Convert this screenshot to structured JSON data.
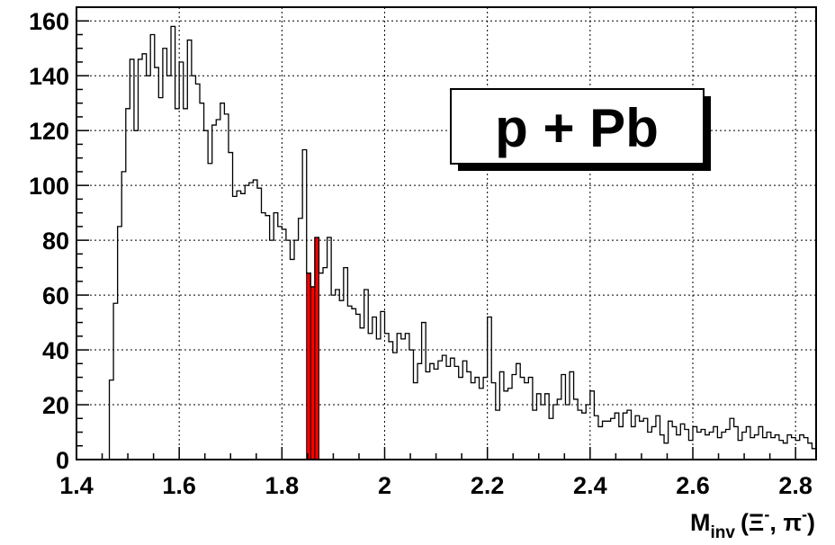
{
  "chart_data": {
    "type": "histogram",
    "title": "",
    "xlabel": "M",
    "xlabel_subscript": "inv",
    "xlabel_args": [
      "(Ξ",
      "-",
      ", π",
      "-",
      ")"
    ],
    "ylabel": "",
    "xlim": [
      1.4,
      2.84
    ],
    "ylim": [
      0,
      165
    ],
    "bin_width": 0.008,
    "grid": true,
    "x_ticks": [
      1.4,
      1.6,
      1.8,
      2,
      2.2,
      2.4,
      2.6,
      2.8
    ],
    "x_tick_labels": [
      "1.4",
      "1.6",
      "1.8",
      "2",
      "2.2",
      "2.4",
      "2.6",
      "2.8"
    ],
    "y_ticks": [
      0,
      20,
      40,
      60,
      80,
      100,
      120,
      140,
      160
    ],
    "y_tick_labels": [
      "0",
      "20",
      "40",
      "60",
      "80",
      "100",
      "120",
      "140",
      "160"
    ],
    "legend": {
      "text": "p + Pb",
      "placement": "top-right"
    },
    "line_color": "#000000",
    "highlight_color": "#ff0000",
    "highlight_bins": [
      {
        "x": 1.848,
        "y": 68
      },
      {
        "x": 1.856,
        "y": 63
      },
      {
        "x": 1.864,
        "y": 81
      }
    ],
    "bins": [
      {
        "x": 1.4,
        "y": 0
      },
      {
        "x": 1.408,
        "y": 0
      },
      {
        "x": 1.416,
        "y": 0
      },
      {
        "x": 1.424,
        "y": 0
      },
      {
        "x": 1.432,
        "y": 0
      },
      {
        "x": 1.44,
        "y": 0
      },
      {
        "x": 1.448,
        "y": 0
      },
      {
        "x": 1.456,
        "y": 0
      },
      {
        "x": 1.464,
        "y": 29
      },
      {
        "x": 1.472,
        "y": 57
      },
      {
        "x": 1.48,
        "y": 85
      },
      {
        "x": 1.488,
        "y": 105
      },
      {
        "x": 1.496,
        "y": 128
      },
      {
        "x": 1.504,
        "y": 146
      },
      {
        "x": 1.512,
        "y": 120
      },
      {
        "x": 1.52,
        "y": 146
      },
      {
        "x": 1.528,
        "y": 148
      },
      {
        "x": 1.536,
        "y": 140
      },
      {
        "x": 1.544,
        "y": 155
      },
      {
        "x": 1.552,
        "y": 143
      },
      {
        "x": 1.56,
        "y": 132
      },
      {
        "x": 1.568,
        "y": 150
      },
      {
        "x": 1.576,
        "y": 140
      },
      {
        "x": 1.584,
        "y": 158
      },
      {
        "x": 1.592,
        "y": 128
      },
      {
        "x": 1.6,
        "y": 145
      },
      {
        "x": 1.608,
        "y": 128
      },
      {
        "x": 1.616,
        "y": 153
      },
      {
        "x": 1.624,
        "y": 140
      },
      {
        "x": 1.632,
        "y": 137
      },
      {
        "x": 1.64,
        "y": 130
      },
      {
        "x": 1.648,
        "y": 120
      },
      {
        "x": 1.656,
        "y": 108
      },
      {
        "x": 1.664,
        "y": 122
      },
      {
        "x": 1.672,
        "y": 124
      },
      {
        "x": 1.68,
        "y": 130
      },
      {
        "x": 1.688,
        "y": 126
      },
      {
        "x": 1.696,
        "y": 112
      },
      {
        "x": 1.704,
        "y": 96
      },
      {
        "x": 1.712,
        "y": 98
      },
      {
        "x": 1.72,
        "y": 97
      },
      {
        "x": 1.728,
        "y": 100
      },
      {
        "x": 1.736,
        "y": 101
      },
      {
        "x": 1.744,
        "y": 102
      },
      {
        "x": 1.752,
        "y": 99
      },
      {
        "x": 1.76,
        "y": 90
      },
      {
        "x": 1.768,
        "y": 89
      },
      {
        "x": 1.776,
        "y": 80
      },
      {
        "x": 1.784,
        "y": 90
      },
      {
        "x": 1.792,
        "y": 85
      },
      {
        "x": 1.8,
        "y": 84
      },
      {
        "x": 1.808,
        "y": 80
      },
      {
        "x": 1.816,
        "y": 73
      },
      {
        "x": 1.824,
        "y": 80
      },
      {
        "x": 1.832,
        "y": 88
      },
      {
        "x": 1.84,
        "y": 113
      },
      {
        "x": 1.848,
        "y": 68
      },
      {
        "x": 1.856,
        "y": 63
      },
      {
        "x": 1.864,
        "y": 81
      },
      {
        "x": 1.872,
        "y": 68
      },
      {
        "x": 1.88,
        "y": 70
      },
      {
        "x": 1.888,
        "y": 81
      },
      {
        "x": 1.896,
        "y": 60
      },
      {
        "x": 1.904,
        "y": 62
      },
      {
        "x": 1.912,
        "y": 58
      },
      {
        "x": 1.92,
        "y": 70
      },
      {
        "x": 1.928,
        "y": 56
      },
      {
        "x": 1.936,
        "y": 55
      },
      {
        "x": 1.944,
        "y": 53
      },
      {
        "x": 1.952,
        "y": 48
      },
      {
        "x": 1.96,
        "y": 62
      },
      {
        "x": 1.968,
        "y": 46
      },
      {
        "x": 1.976,
        "y": 52
      },
      {
        "x": 1.984,
        "y": 44
      },
      {
        "x": 1.992,
        "y": 54
      },
      {
        "x": 2.0,
        "y": 46
      },
      {
        "x": 2.008,
        "y": 43
      },
      {
        "x": 2.016,
        "y": 39
      },
      {
        "x": 2.024,
        "y": 46
      },
      {
        "x": 2.032,
        "y": 44
      },
      {
        "x": 2.04,
        "y": 46
      },
      {
        "x": 2.048,
        "y": 40
      },
      {
        "x": 2.056,
        "y": 28
      },
      {
        "x": 2.064,
        "y": 35
      },
      {
        "x": 2.072,
        "y": 50
      },
      {
        "x": 2.08,
        "y": 32
      },
      {
        "x": 2.088,
        "y": 35
      },
      {
        "x": 2.096,
        "y": 33
      },
      {
        "x": 2.104,
        "y": 36
      },
      {
        "x": 2.112,
        "y": 38
      },
      {
        "x": 2.12,
        "y": 34
      },
      {
        "x": 2.128,
        "y": 37
      },
      {
        "x": 2.136,
        "y": 34
      },
      {
        "x": 2.144,
        "y": 30
      },
      {
        "x": 2.152,
        "y": 36
      },
      {
        "x": 2.16,
        "y": 32
      },
      {
        "x": 2.168,
        "y": 28
      },
      {
        "x": 2.176,
        "y": 30
      },
      {
        "x": 2.184,
        "y": 26
      },
      {
        "x": 2.192,
        "y": 30
      },
      {
        "x": 2.2,
        "y": 52
      },
      {
        "x": 2.208,
        "y": 28
      },
      {
        "x": 2.216,
        "y": 18
      },
      {
        "x": 2.224,
        "y": 32
      },
      {
        "x": 2.232,
        "y": 25
      },
      {
        "x": 2.24,
        "y": 26
      },
      {
        "x": 2.248,
        "y": 31
      },
      {
        "x": 2.256,
        "y": 35
      },
      {
        "x": 2.264,
        "y": 30
      },
      {
        "x": 2.272,
        "y": 28
      },
      {
        "x": 2.28,
        "y": 30
      },
      {
        "x": 2.288,
        "y": 18
      },
      {
        "x": 2.296,
        "y": 24
      },
      {
        "x": 2.304,
        "y": 20
      },
      {
        "x": 2.312,
        "y": 24
      },
      {
        "x": 2.32,
        "y": 15
      },
      {
        "x": 2.328,
        "y": 20
      },
      {
        "x": 2.336,
        "y": 22
      },
      {
        "x": 2.344,
        "y": 31
      },
      {
        "x": 2.352,
        "y": 20
      },
      {
        "x": 2.36,
        "y": 32
      },
      {
        "x": 2.368,
        "y": 22
      },
      {
        "x": 2.376,
        "y": 18
      },
      {
        "x": 2.384,
        "y": 17
      },
      {
        "x": 2.392,
        "y": 20
      },
      {
        "x": 2.4,
        "y": 25
      },
      {
        "x": 2.408,
        "y": 16
      },
      {
        "x": 2.416,
        "y": 12
      },
      {
        "x": 2.424,
        "y": 14
      },
      {
        "x": 2.432,
        "y": 14
      },
      {
        "x": 2.44,
        "y": 15
      },
      {
        "x": 2.448,
        "y": 17
      },
      {
        "x": 2.456,
        "y": 12
      },
      {
        "x": 2.464,
        "y": 17
      },
      {
        "x": 2.472,
        "y": 18
      },
      {
        "x": 2.48,
        "y": 12
      },
      {
        "x": 2.488,
        "y": 16
      },
      {
        "x": 2.496,
        "y": 14
      },
      {
        "x": 2.504,
        "y": 15
      },
      {
        "x": 2.512,
        "y": 10
      },
      {
        "x": 2.52,
        "y": 12
      },
      {
        "x": 2.528,
        "y": 16
      },
      {
        "x": 2.536,
        "y": 9
      },
      {
        "x": 2.544,
        "y": 6
      },
      {
        "x": 2.552,
        "y": 14
      },
      {
        "x": 2.56,
        "y": 12
      },
      {
        "x": 2.568,
        "y": 9
      },
      {
        "x": 2.576,
        "y": 13
      },
      {
        "x": 2.584,
        "y": 11
      },
      {
        "x": 2.592,
        "y": 7
      },
      {
        "x": 2.6,
        "y": 12
      },
      {
        "x": 2.608,
        "y": 10
      },
      {
        "x": 2.616,
        "y": 11
      },
      {
        "x": 2.624,
        "y": 9
      },
      {
        "x": 2.632,
        "y": 10
      },
      {
        "x": 2.64,
        "y": 12
      },
      {
        "x": 2.648,
        "y": 8
      },
      {
        "x": 2.656,
        "y": 10
      },
      {
        "x": 2.664,
        "y": 11
      },
      {
        "x": 2.672,
        "y": 15
      },
      {
        "x": 2.68,
        "y": 12
      },
      {
        "x": 2.688,
        "y": 7
      },
      {
        "x": 2.696,
        "y": 10
      },
      {
        "x": 2.704,
        "y": 12
      },
      {
        "x": 2.712,
        "y": 8
      },
      {
        "x": 2.72,
        "y": 9
      },
      {
        "x": 2.728,
        "y": 12
      },
      {
        "x": 2.736,
        "y": 8
      },
      {
        "x": 2.744,
        "y": 10
      },
      {
        "x": 2.752,
        "y": 8
      },
      {
        "x": 2.76,
        "y": 9
      },
      {
        "x": 2.768,
        "y": 7
      },
      {
        "x": 2.776,
        "y": 6
      },
      {
        "x": 2.784,
        "y": 9
      },
      {
        "x": 2.792,
        "y": 8
      },
      {
        "x": 2.8,
        "y": 7
      },
      {
        "x": 2.808,
        "y": 9
      },
      {
        "x": 2.816,
        "y": 8
      },
      {
        "x": 2.824,
        "y": 6
      },
      {
        "x": 2.832,
        "y": 4
      }
    ]
  }
}
